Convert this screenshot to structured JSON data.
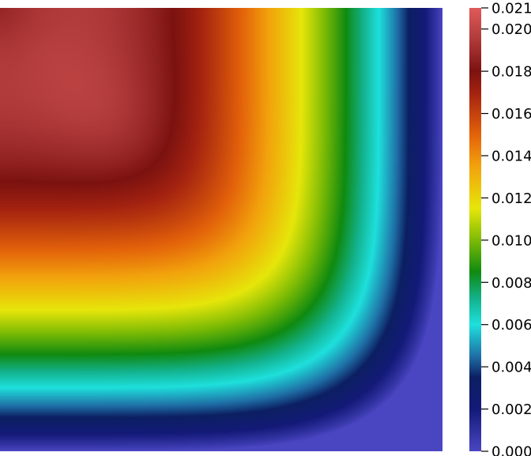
{
  "chart_data": {
    "type": "heatmap",
    "title": "",
    "xlabel": "",
    "ylabel": "",
    "colorbar": {
      "range": [
        0.0,
        0.021
      ],
      "ticks": [
        {
          "value": 0.0,
          "label": "0.000"
        },
        {
          "value": 0.002,
          "label": "0.002"
        },
        {
          "value": 0.004,
          "label": "0.004"
        },
        {
          "value": 0.006,
          "label": "0.006"
        },
        {
          "value": 0.008,
          "label": "0.008"
        },
        {
          "value": 0.01,
          "label": "0.010"
        },
        {
          "value": 0.012,
          "label": "0.012"
        },
        {
          "value": 0.014,
          "label": "0.014"
        },
        {
          "value": 0.016,
          "label": "0.016"
        },
        {
          "value": 0.018,
          "label": "0.018"
        },
        {
          "value": 0.02,
          "label": "0.020"
        },
        {
          "value": 0.021,
          "label": "0.021"
        }
      ],
      "colormap": [
        {
          "value": 0.0,
          "color": "#4a46c2"
        },
        {
          "value": 0.002,
          "color": "#131a78"
        },
        {
          "value": 0.0035,
          "color": "#0c1f62"
        },
        {
          "value": 0.0045,
          "color": "#1f6fa6"
        },
        {
          "value": 0.006,
          "color": "#1ee0dc"
        },
        {
          "value": 0.0072,
          "color": "#13b38f"
        },
        {
          "value": 0.0085,
          "color": "#0f8a10"
        },
        {
          "value": 0.01,
          "color": "#7dbb05"
        },
        {
          "value": 0.0115,
          "color": "#e6e60a"
        },
        {
          "value": 0.0135,
          "color": "#f2a20c"
        },
        {
          "value": 0.015,
          "color": "#e3620a"
        },
        {
          "value": 0.017,
          "color": "#a32210"
        },
        {
          "value": 0.018,
          "color": "#7c1210"
        },
        {
          "value": 0.0195,
          "color": "#b03a3a"
        },
        {
          "value": 0.021,
          "color": "#e05a5a"
        }
      ]
    }
  }
}
